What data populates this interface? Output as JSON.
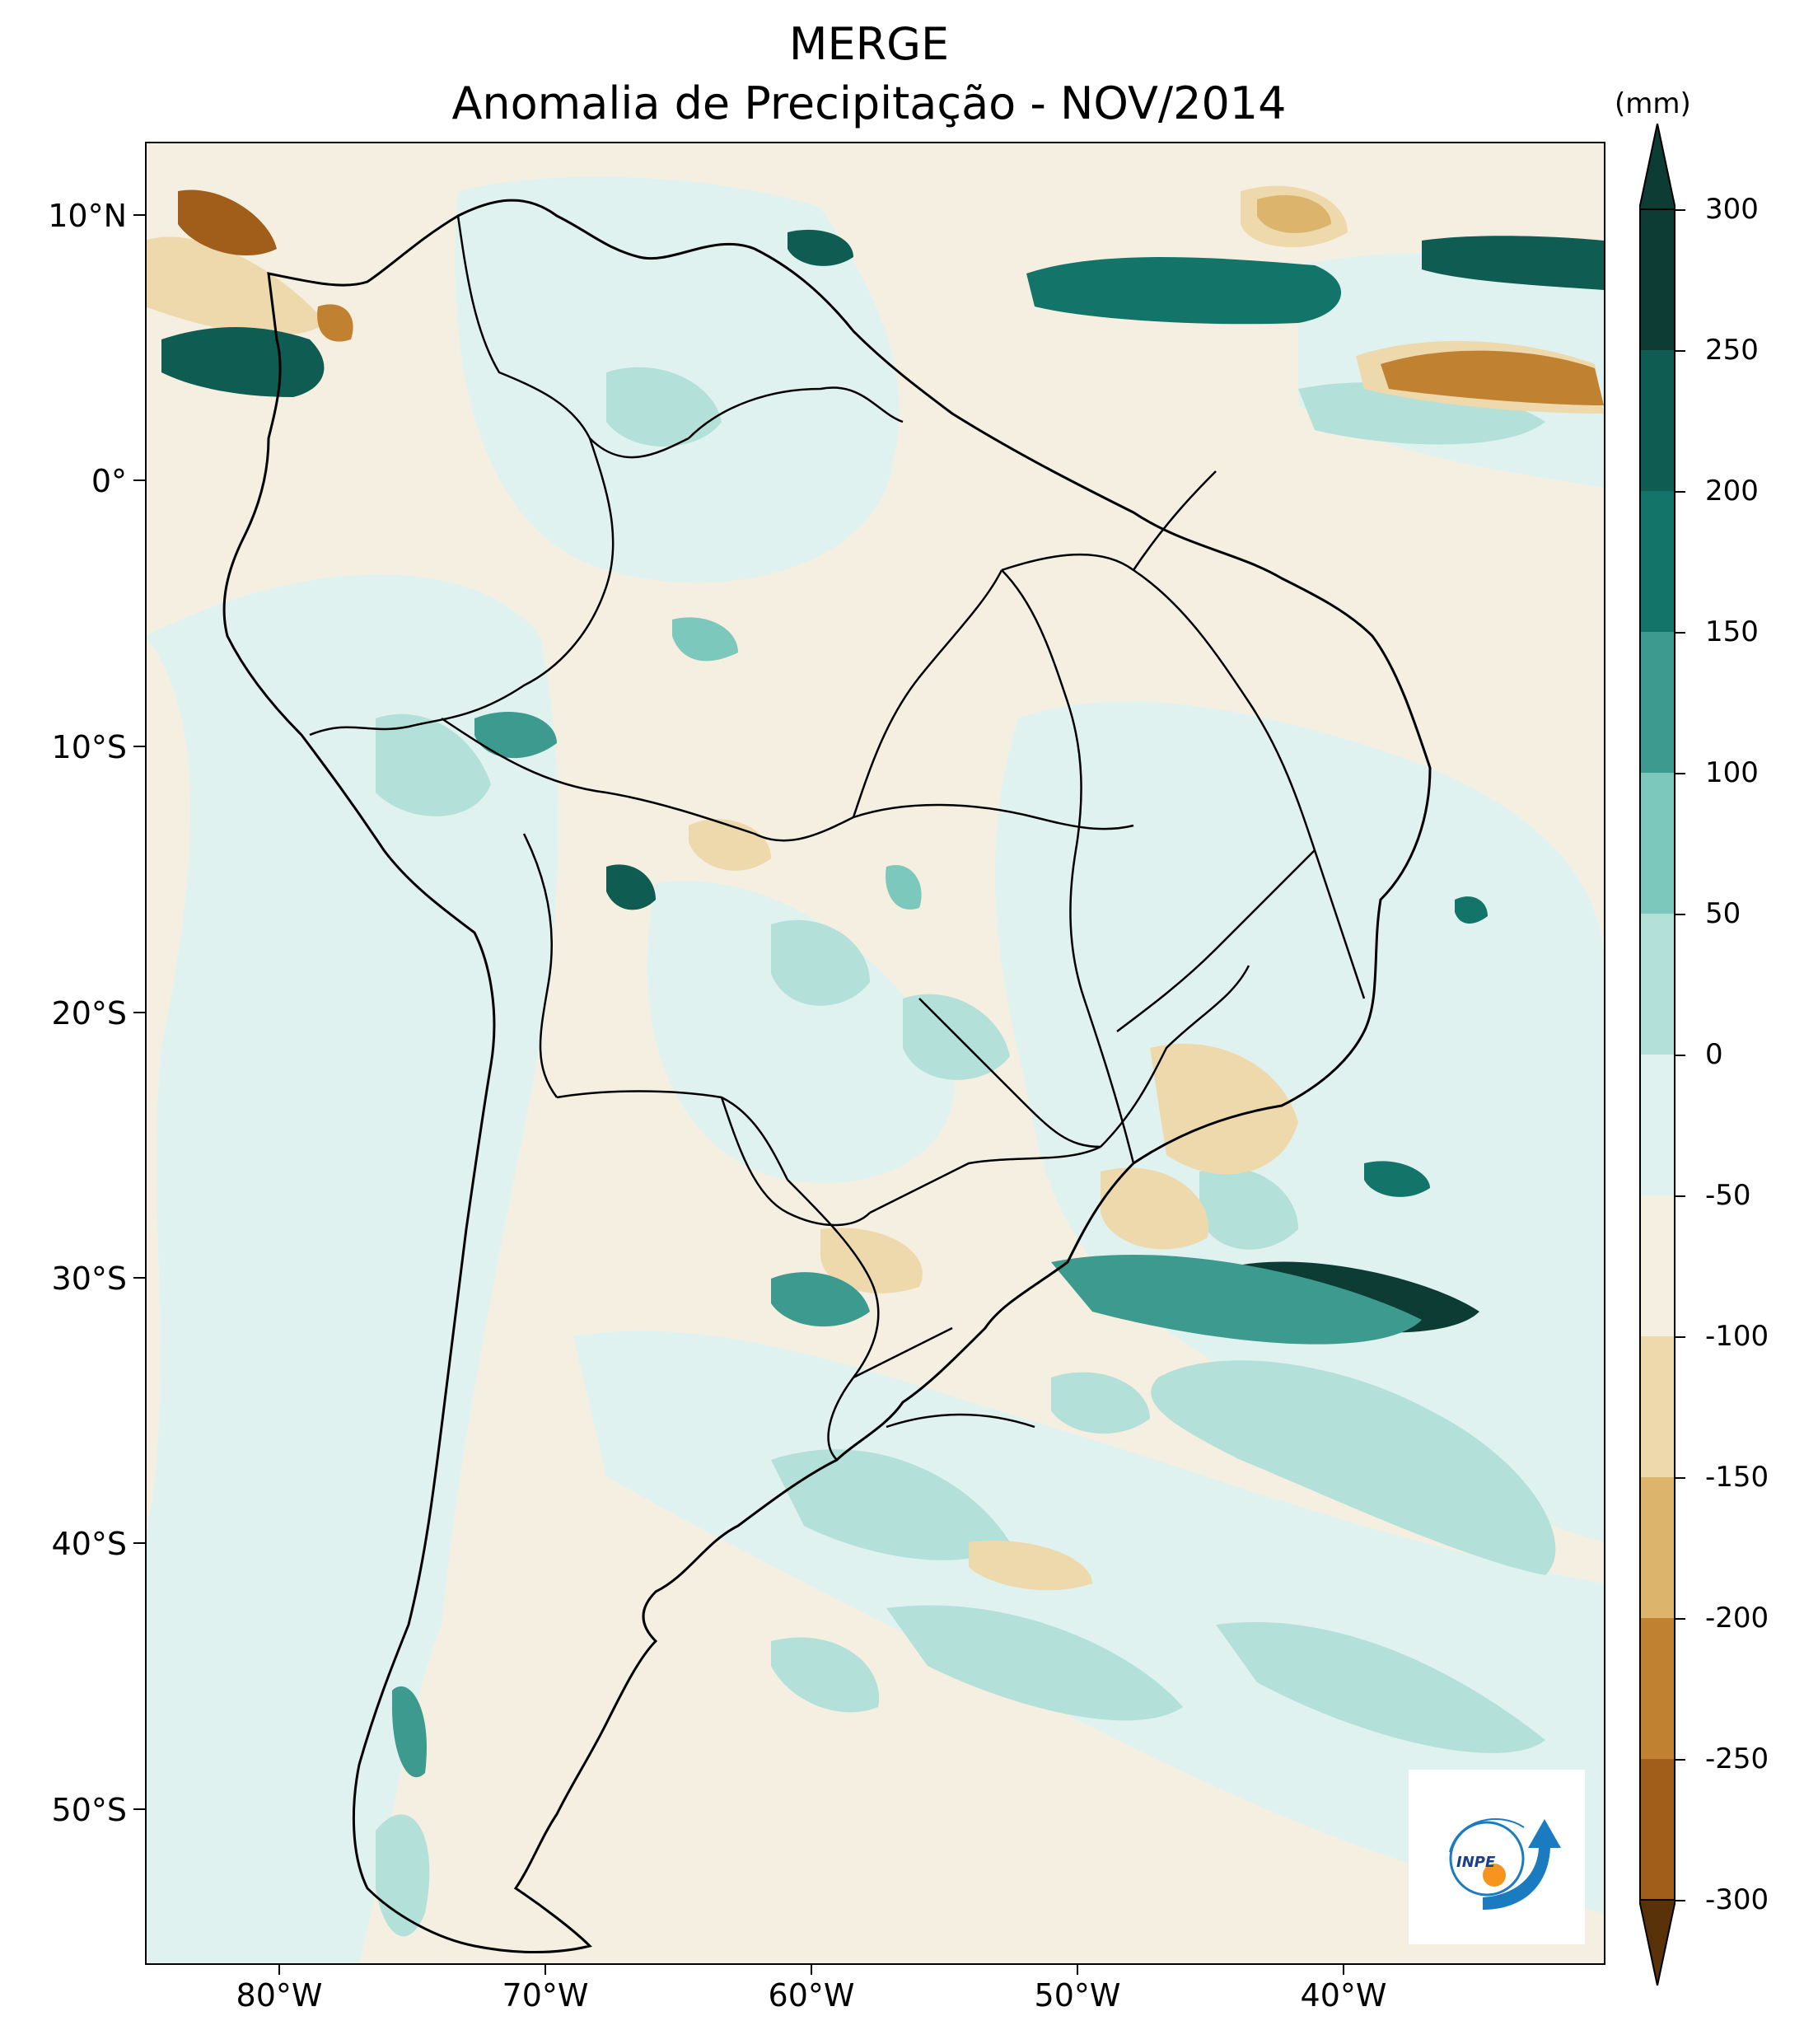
{
  "title": {
    "line1": "MERGE",
    "line2": "Anomalia de Precipitação - NOV/2014"
  },
  "axes": {
    "lat_labels": [
      "10°N",
      "0°",
      "10°S",
      "20°S",
      "30°S",
      "40°S",
      "50°S"
    ],
    "lon_labels": [
      "80°W",
      "70°W",
      "60°W",
      "50°W",
      "40°W"
    ]
  },
  "colorbar": {
    "unit": "(mm)",
    "labels": [
      "300",
      "250",
      "200",
      "150",
      "100",
      "50",
      "0",
      "-50",
      "-100",
      "-150",
      "-200",
      "-250",
      "-300"
    ],
    "colors": {
      "gt300": "#0d3c34",
      "250_300": "#0f5c52",
      "200_250": "#137569",
      "150_200": "#3d9a8e",
      "100_150": "#7dc8bc",
      "50_100": "#b3e0d8",
      "0_50": "#e0f2ef",
      "m50_0": "#f5efe1",
      "m100_m50": "#eed9ad",
      "m150_m100": "#dcb46c",
      "m200_m150": "#c08131",
      "m250_m200": "#a05e1a",
      "m300_m250": "#7e4511",
      "lt_m300": "#5a320a"
    }
  },
  "logo": {
    "text": "INPE"
  }
}
